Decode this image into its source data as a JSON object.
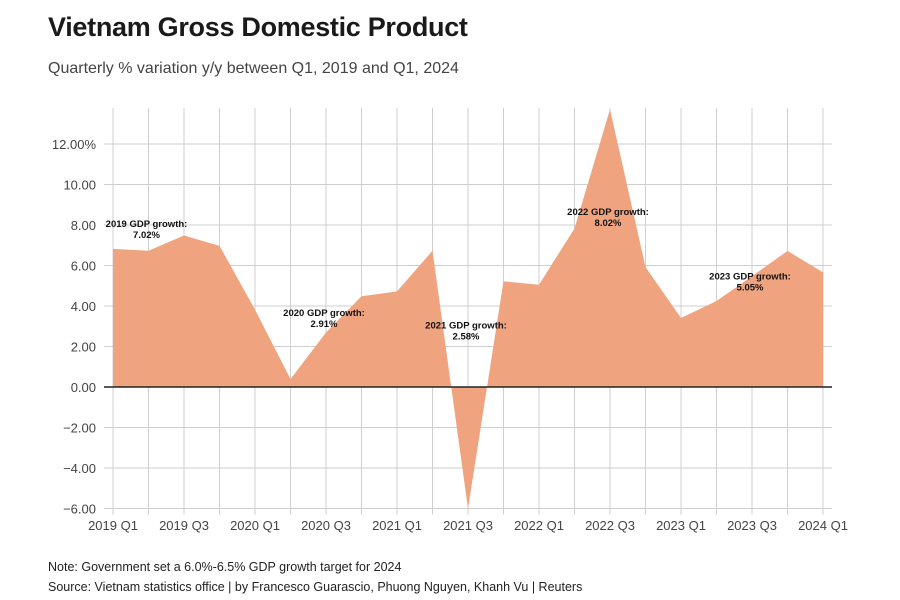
{
  "title": "Vietnam Gross Domestic Product",
  "subtitle": "Quarterly % variation y/y between Q1, 2019 and Q1, 2024",
  "note": "Note: Government set a 6.0%-6.5% GDP growth target for 2024",
  "source": "Source: Vietnam statistics office | by Francesco Guarascio, Phuong Nguyen, Khanh Vu | Reuters",
  "chart_data": {
    "type": "area",
    "title": "Vietnam Gross Domestic Product",
    "xlabel": "",
    "ylabel": "",
    "x": [
      "2019 Q1",
      "2019 Q2",
      "2019 Q3",
      "2019 Q4",
      "2020 Q1",
      "2020 Q2",
      "2020 Q3",
      "2020 Q4",
      "2021 Q1",
      "2021 Q2",
      "2021 Q3",
      "2021 Q4",
      "2022 Q1",
      "2022 Q2",
      "2022 Q3",
      "2022 Q4",
      "2023 Q1",
      "2023 Q2",
      "2023 Q3",
      "2023 Q4",
      "2024 Q1"
    ],
    "values": [
      6.82,
      6.73,
      7.48,
      6.97,
      3.82,
      0.39,
      2.69,
      4.48,
      4.72,
      6.73,
      -6.02,
      5.22,
      5.05,
      7.83,
      13.71,
      5.92,
      3.41,
      4.25,
      5.47,
      6.72,
      5.66
    ],
    "xtick_labels": [
      "2019 Q1",
      "2019 Q3",
      "2020 Q1",
      "2020 Q3",
      "2021 Q1",
      "2021 Q3",
      "2022 Q1",
      "2022 Q3",
      "2023 Q1",
      "2023 Q3",
      "2024 Q1"
    ],
    "ytick_values": [
      12,
      10,
      8,
      6,
      4,
      2,
      0,
      -2,
      -4,
      -6
    ],
    "ytick_labels": [
      "12.00%",
      "10.00",
      "8.00",
      "6.00",
      "4.00",
      "2.00",
      "0.00",
      "-2.00",
      "-4.00",
      "-6.00"
    ],
    "ylim": [
      -6,
      13.71
    ],
    "grid": true,
    "fill_color": "#efa47f",
    "annotations": [
      {
        "line1": "2019 GDP growth:",
        "line2": "7.02%",
        "x": "2019 Q2",
        "y": 7.9
      },
      {
        "line1": "2020 GDP growth:",
        "line2": "2.91%",
        "x": "2020 Q3",
        "y": 3.5
      },
      {
        "line1": "2021 GDP growth:",
        "line2": "2.58%",
        "x": "2021 Q3",
        "y": 2.9
      },
      {
        "line1": "2022 GDP growth:",
        "line2": "8.02%",
        "x": "2022 Q3",
        "y": 8.5
      },
      {
        "line1": "2023 GDP growth:",
        "line2": "5.05%",
        "x": "2023 Q3",
        "y": 5.3
      }
    ]
  }
}
